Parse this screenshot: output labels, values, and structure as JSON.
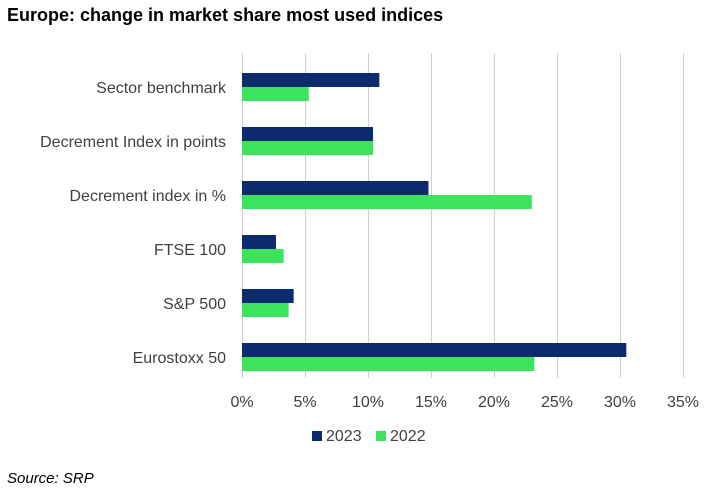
{
  "title": "Europe: change in market share most used indices",
  "source": "Source: SRP",
  "colors": {
    "s2023": "#0c2a6e",
    "s2022": "#3ce35c",
    "grid": "#d0d0d0",
    "text": "#404040"
  },
  "chart_data": {
    "type": "bar",
    "orientation": "horizontal",
    "categories": [
      "Sector benchmark",
      "Decrement Index in points",
      "Decrement index in %",
      "FTSE 100",
      "S&P 500",
      "Eurostoxx 50"
    ],
    "series": [
      {
        "name": "2023",
        "values": [
          10.9,
          10.4,
          14.8,
          2.7,
          4.1,
          30.5
        ]
      },
      {
        "name": "2022",
        "values": [
          5.3,
          10.4,
          23.0,
          3.3,
          3.7,
          23.2
        ]
      }
    ],
    "xlim": [
      0,
      35
    ],
    "ticks": [
      0,
      5,
      10,
      15,
      20,
      25,
      30,
      35
    ],
    "tick_labels": [
      "0%",
      "5%",
      "10%",
      "15%",
      "20%",
      "25%",
      "30%",
      "35%"
    ],
    "grid": true,
    "legend": "bottom"
  }
}
